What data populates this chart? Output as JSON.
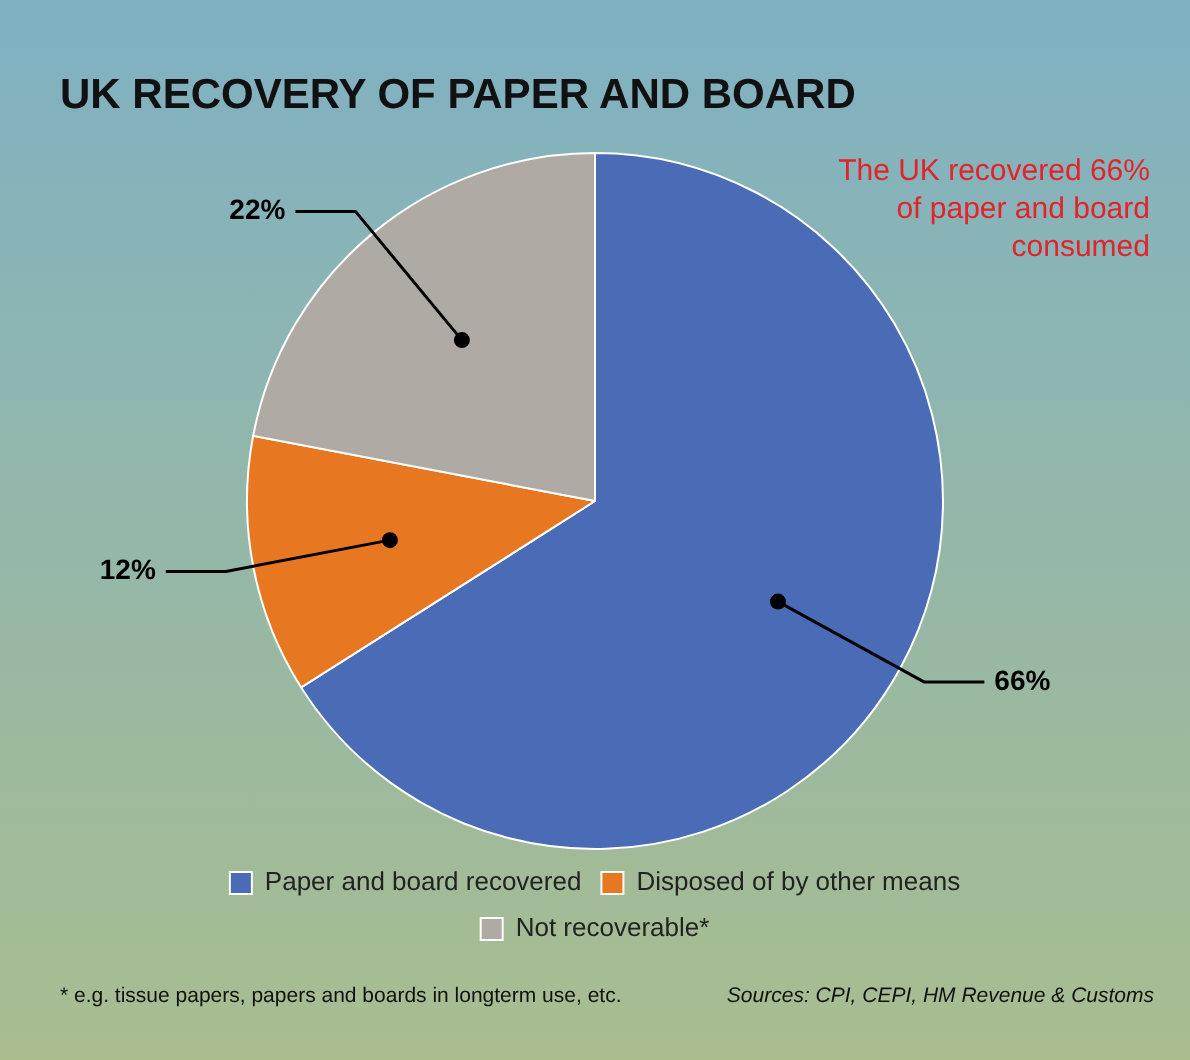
{
  "chart_data": {
    "type": "pie",
    "title": "UK RECOVERY OF PAPER AND BOARD",
    "categories": [
      "Paper and board recovered",
      "Disposed of by other means",
      "Not recoverable*"
    ],
    "values": [
      66,
      12,
      22
    ],
    "colors": [
      "#4a6bb5",
      "#e87722",
      "#b0aaa5"
    ],
    "value_labels": [
      "66%",
      "12%",
      "22%"
    ],
    "legend": "bottom",
    "annotations": [
      "The UK recovered 66% of paper and board consumed",
      "* e.g. tissue papers, papers and boards in longterm use, etc.",
      "Sources: CPI, CEPI, HM Revenue & Customs"
    ]
  }
}
